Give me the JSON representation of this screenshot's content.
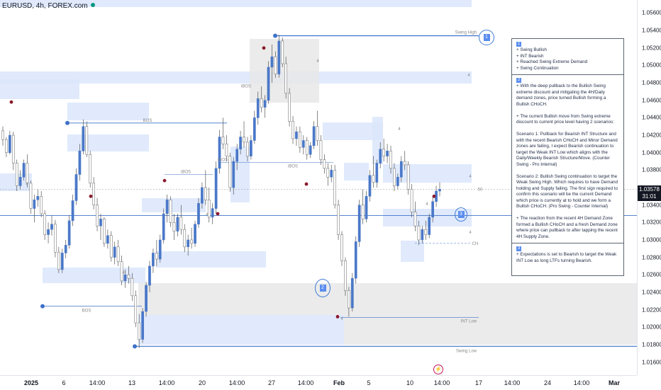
{
  "header": {
    "symbol": "EURUSD, 4h, FOREX.com"
  },
  "colors": {
    "up": "#4a78c8",
    "down": "#ffffff",
    "wick": "#555555",
    "zone_blue": "#dbe6fb",
    "zone_grey": "#e7e7e7",
    "structure_line": "#3f72c8",
    "swing_dot": "#8b1a2b",
    "label_text": "#888888"
  },
  "price_axis": {
    "ticks": [
      "1.05600",
      "1.05400",
      "1.05200",
      "1.05000",
      "1.04800",
      "1.04600",
      "1.04400",
      "1.04200",
      "1.04000",
      "1.03800",
      "1.03400",
      "1.03200",
      "1.03000",
      "1.02800",
      "1.02600",
      "1.02400",
      "1.02200",
      "1.02000",
      "1.01800",
      "1.01600"
    ],
    "current_price": "1.03578",
    "countdown": "31:01"
  },
  "time_axis": {
    "ticks": [
      {
        "label": "2025",
        "bold": true
      },
      {
        "label": "6"
      },
      {
        "label": "14:00"
      },
      {
        "label": "13"
      },
      {
        "label": "14:00"
      },
      {
        "label": "20"
      },
      {
        "label": "14:00"
      },
      {
        "label": "27"
      },
      {
        "label": "14:00"
      },
      {
        "label": "Feb",
        "bold": true
      },
      {
        "label": "5"
      },
      {
        "label": "10"
      },
      {
        "label": "14:00"
      },
      {
        "label": "17"
      },
      {
        "label": "14:00"
      },
      {
        "label": "24"
      },
      {
        "label": "14:00"
      },
      {
        "label": "Mar",
        "bold": true
      }
    ]
  },
  "chart_labels": {
    "swing_high": "Swing High",
    "swing_low": "Swing Low",
    "int_low": "INT Low",
    "bos": "BOS",
    "ibos": "iBOS",
    "choch": "CH",
    "fifty": "50",
    "z": "4"
  },
  "markers": {
    "m1": "1",
    "m2": "2",
    "m3": "3"
  },
  "notes": {
    "s1": {
      "num": "1",
      "lines": [
        "+ Swing Bullish",
        "+ INT Bearish",
        "+ Reached Swing Extreme Demand",
        "+ Swing Continuation"
      ]
    },
    "s2": {
      "num": "2",
      "lines": [
        "+ With the deep pullback to the Bullish Swing extreme discount and mitigating the 4H/Daily demand zones, price turned Bullish forming a Bullish CHoCH.",
        "",
        "+ The current Bullish move from Swing extreme discount to current price level having 2 scenarios:",
        "",
        "Scenario 1: Pullback for Bearish INT Structure and with the recent Bearish CHoCH and Minor Demand zones are failing, I expect Bearish continuation to target the Weak INT Low which aligns with the Daily/Weekly Bearish Structure/Move. (Counter Swing - Pro Internal)",
        "",
        "Scenario 2: Bullish Swing continuation to target the Weak Swing High. Which requires to have Demand holding and Supply failing. The first sign required to confirm this scenario will be the current Demand which price is currently at to hold and we form a Bullish CHoCH. (Pro Swing - Counter Internal)",
        "",
        "+ The reaction from the recent 4H Demand Zone formed a Bullish CHoCH and a fresh Demand zone where price can pullback to after tapping the recent 4H Supply Zone."
      ]
    },
    "s3": {
      "num": "3",
      "lines": [
        "+ Expectations is set to Bearish to target the Weak INT Low as long LTFs turning Bearish."
      ]
    }
  },
  "chart_data": {
    "type": "candlestick",
    "title": "EURUSD, 4h, FOREX.com",
    "ylim": [
      1.0145,
      1.0575
    ],
    "x_range": [
      "2024-12-31",
      "2025-03-01"
    ],
    "key_levels": {
      "swing_high": 1.0534,
      "swing_low": 1.0178,
      "int_low": 1.0211,
      "bos_high": 1.0434,
      "bos_low": 1.0224,
      "ibos_left": 1.0375,
      "ibos_right": 1.0389,
      "choch": 1.0296,
      "current": 1.03578
    },
    "series": [
      {
        "values": [
          [
            1.0425,
            1.043,
            1.0408,
            1.0415
          ],
          [
            1.0415,
            1.0418,
            1.0395,
            1.04
          ],
          [
            1.04,
            1.0425,
            1.0398,
            1.042
          ],
          [
            1.042,
            1.0424,
            1.038,
            1.0388
          ],
          [
            1.0388,
            1.0392,
            1.0356,
            1.0362
          ],
          [
            1.0362,
            1.038,
            1.0358,
            1.0372
          ],
          [
            1.0372,
            1.0392,
            1.0368,
            1.0388
          ],
          [
            1.0388,
            1.0398,
            1.036,
            1.0365
          ],
          [
            1.0365,
            1.0368,
            1.033,
            1.0336
          ],
          [
            1.0336,
            1.0352,
            1.032,
            1.0346
          ],
          [
            1.0346,
            1.0358,
            1.0338,
            1.035
          ],
          [
            1.035,
            1.0356,
            1.0326,
            1.033
          ],
          [
            1.033,
            1.0334,
            1.03,
            1.0306
          ],
          [
            1.0306,
            1.032,
            1.0296,
            1.0312
          ],
          [
            1.0312,
            1.0328,
            1.0305,
            1.0318
          ],
          [
            1.0318,
            1.0323,
            1.028,
            1.0286
          ],
          [
            1.0286,
            1.0292,
            1.0262,
            1.0266
          ],
          [
            1.0266,
            1.029,
            1.0262,
            1.0285
          ],
          [
            1.0285,
            1.03,
            1.0279,
            1.0294
          ],
          [
            1.0294,
            1.0328,
            1.029,
            1.0322
          ],
          [
            1.0322,
            1.0352,
            1.0316,
            1.0345
          ],
          [
            1.0345,
            1.0382,
            1.034,
            1.0375
          ],
          [
            1.0375,
            1.041,
            1.0368,
            1.0402
          ],
          [
            1.0402,
            1.0438,
            1.0398,
            1.043
          ],
          [
            1.043,
            1.0436,
            1.0395,
            1.0398
          ],
          [
            1.0398,
            1.0402,
            1.036,
            1.0365
          ],
          [
            1.0365,
            1.0372,
            1.0335,
            1.034
          ],
          [
            1.034,
            1.0348,
            1.031,
            1.0316
          ],
          [
            1.0316,
            1.033,
            1.03,
            1.0324
          ],
          [
            1.0324,
            1.0326,
            1.0292,
            1.0296
          ],
          [
            1.0296,
            1.0312,
            1.029,
            1.0305
          ],
          [
            1.0305,
            1.031,
            1.0275,
            1.028
          ],
          [
            1.028,
            1.0298,
            1.0272,
            1.0292
          ],
          [
            1.0292,
            1.03,
            1.027,
            1.0275
          ],
          [
            1.0275,
            1.0282,
            1.0248,
            1.0253
          ],
          [
            1.0253,
            1.0266,
            1.0245,
            1.026
          ],
          [
            1.026,
            1.027,
            1.025,
            1.0256
          ],
          [
            1.0256,
            1.0262,
            1.023,
            1.0236
          ],
          [
            1.0236,
            1.0242,
            1.02,
            1.0205
          ],
          [
            1.0205,
            1.0215,
            1.0176,
            1.0186
          ],
          [
            1.0186,
            1.0222,
            1.0182,
            1.0218
          ],
          [
            1.0218,
            1.0252,
            1.0212,
            1.0248
          ],
          [
            1.0248,
            1.0276,
            1.024,
            1.027
          ],
          [
            1.027,
            1.029,
            1.0262,
            1.0285
          ],
          [
            1.0285,
            1.03,
            1.027,
            1.0278
          ],
          [
            1.0278,
            1.0306,
            1.0274,
            1.03
          ],
          [
            1.03,
            1.0336,
            1.0296,
            1.033
          ],
          [
            1.033,
            1.0352,
            1.032,
            1.0346
          ],
          [
            1.0346,
            1.035,
            1.0315,
            1.032
          ],
          [
            1.032,
            1.033,
            1.03,
            1.031
          ],
          [
            1.031,
            1.033,
            1.0304,
            1.0326
          ],
          [
            1.0326,
            1.034,
            1.0306,
            1.0312
          ],
          [
            1.0312,
            1.0318,
            1.0286,
            1.0292
          ],
          [
            1.0292,
            1.0306,
            1.0282,
            1.03
          ],
          [
            1.03,
            1.0314,
            1.029,
            1.0296
          ],
          [
            1.0296,
            1.0322,
            1.0292,
            1.0318
          ],
          [
            1.0318,
            1.0348,
            1.0314,
            1.0342
          ],
          [
            1.0342,
            1.0366,
            1.0336,
            1.036
          ],
          [
            1.036,
            1.038,
            1.034,
            1.0346
          ],
          [
            1.0346,
            1.036,
            1.032,
            1.0326
          ],
          [
            1.0326,
            1.0342,
            1.0318,
            1.0336
          ],
          [
            1.0336,
            1.039,
            1.033,
            1.0382
          ],
          [
            1.0382,
            1.0426,
            1.0376,
            1.0418
          ],
          [
            1.0418,
            1.044,
            1.0404,
            1.041
          ],
          [
            1.041,
            1.042,
            1.039,
            1.0396
          ],
          [
            1.0396,
            1.04,
            1.0355,
            1.036
          ],
          [
            1.036,
            1.0395,
            1.0352,
            1.039
          ],
          [
            1.039,
            1.041,
            1.038,
            1.0404
          ],
          [
            1.0404,
            1.0425,
            1.0398,
            1.0418
          ],
          [
            1.0418,
            1.0436,
            1.0406,
            1.0412
          ],
          [
            1.0412,
            1.0418,
            1.039,
            1.0396
          ],
          [
            1.0396,
            1.042,
            1.0392,
            1.0414
          ],
          [
            1.0414,
            1.0448,
            1.041,
            1.044
          ],
          [
            1.044,
            1.047,
            1.0432,
            1.0462
          ],
          [
            1.0462,
            1.0476,
            1.0446,
            1.0452
          ],
          [
            1.0452,
            1.0466,
            1.044,
            1.046
          ],
          [
            1.046,
            1.0505,
            1.0456,
            1.0498
          ],
          [
            1.0498,
            1.0524,
            1.048,
            1.051
          ],
          [
            1.051,
            1.0516,
            1.0486,
            1.049
          ],
          [
            1.049,
            1.0535,
            1.0486,
            1.0528
          ],
          [
            1.0528,
            1.0532,
            1.0498,
            1.0502
          ],
          [
            1.0502,
            1.051,
            1.0462,
            1.0468
          ],
          [
            1.0468,
            1.0474,
            1.043,
            1.0436
          ],
          [
            1.0436,
            1.0442,
            1.041,
            1.0416
          ],
          [
            1.0416,
            1.043,
            1.0408,
            1.0424
          ],
          [
            1.0424,
            1.043,
            1.04,
            1.0406
          ],
          [
            1.0406,
            1.042,
            1.0398,
            1.0414
          ],
          [
            1.0414,
            1.0418,
            1.0392,
            1.0398
          ],
          [
            1.0398,
            1.0412,
            1.0394,
            1.0408
          ],
          [
            1.0408,
            1.0436,
            1.0404,
            1.043
          ],
          [
            1.043,
            1.0448,
            1.0408,
            1.0414
          ],
          [
            1.0414,
            1.042,
            1.0386,
            1.0392
          ],
          [
            1.0392,
            1.0398,
            1.0376,
            1.0382
          ],
          [
            1.0382,
            1.0388,
            1.0362,
            1.0372
          ],
          [
            1.0372,
            1.0386,
            1.0366,
            1.038
          ],
          [
            1.038,
            1.0386,
            1.0336,
            1.034
          ],
          [
            1.034,
            1.0346,
            1.03,
            1.0306
          ],
          [
            1.0306,
            1.031,
            1.027,
            1.0276
          ],
          [
            1.0276,
            1.028,
            1.0236,
            1.0242
          ],
          [
            1.0242,
            1.0246,
            1.0212,
            1.0222
          ],
          [
            1.0222,
            1.0262,
            1.0218,
            1.0256
          ],
          [
            1.0256,
            1.0304,
            1.025,
            1.0298
          ],
          [
            1.0298,
            1.0346,
            1.0292,
            1.034
          ],
          [
            1.034,
            1.0358,
            1.0318,
            1.0324
          ],
          [
            1.0324,
            1.0356,
            1.032,
            1.035
          ],
          [
            1.035,
            1.038,
            1.0344,
            1.0374
          ],
          [
            1.0374,
            1.0396,
            1.036,
            1.0366
          ],
          [
            1.0366,
            1.0392,
            1.036,
            1.0388
          ],
          [
            1.0388,
            1.0412,
            1.0382,
            1.0404
          ],
          [
            1.0404,
            1.0416,
            1.039,
            1.0396
          ],
          [
            1.0396,
            1.041,
            1.0388,
            1.0402
          ],
          [
            1.0402,
            1.0408,
            1.0376,
            1.0382
          ],
          [
            1.0382,
            1.0388,
            1.0356,
            1.0362
          ],
          [
            1.0362,
            1.0376,
            1.0358,
            1.0372
          ],
          [
            1.0372,
            1.0396,
            1.0366,
            1.039
          ],
          [
            1.039,
            1.0402,
            1.038,
            1.0386
          ],
          [
            1.0386,
            1.039,
            1.0352,
            1.0358
          ],
          [
            1.0358,
            1.0364,
            1.0326,
            1.0332
          ],
          [
            1.0332,
            1.0344,
            1.031,
            1.0316
          ],
          [
            1.0316,
            1.0322,
            1.0294,
            1.03
          ],
          [
            1.03,
            1.0316,
            1.0296,
            1.0312
          ],
          [
            1.0312,
            1.0322,
            1.03,
            1.0306
          ],
          [
            1.0306,
            1.033,
            1.0302,
            1.0326
          ],
          [
            1.0326,
            1.035,
            1.032,
            1.0344
          ],
          [
            1.0344,
            1.0362,
            1.0338,
            1.0356
          ],
          [
            1.0356,
            1.0366,
            1.035,
            1.0358
          ]
        ]
      }
    ]
  }
}
